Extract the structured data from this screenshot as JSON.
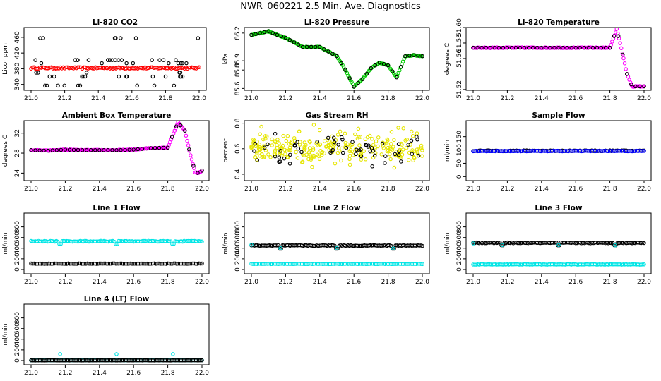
{
  "figure": {
    "title": "NWR_060221  2.5 Min. Ave. Diagnostics"
  },
  "chart_data": [
    {
      "id": "co2",
      "type": "scatter",
      "title": "Li-820 CO2",
      "xlabel": "",
      "ylabel": "Licor ppm",
      "xlim": [
        21.0,
        22.0
      ],
      "ylim": [
        325,
        485
      ],
      "xticks": [
        "21.0",
        "21.2",
        "21.4",
        "21.6",
        "21.8",
        "22.0"
      ],
      "yticks": [
        {
          "v": 340,
          "label": "340"
        },
        {
          "v": 380,
          "label": "380"
        },
        {
          "v": 420,
          "label": "420"
        },
        {
          "v": 460,
          "label": "460"
        }
      ],
      "series": [
        {
          "name": "CO2 (red)",
          "color": "#ff0000",
          "style": "band",
          "value": 382,
          "spread": 2
        },
        {
          "name": "CO2 (black)",
          "color": "#000000",
          "style": "scatter-random",
          "levels": [
            337,
            360,
            370,
            394,
            402,
            458
          ]
        }
      ]
    },
    {
      "id": "pressure",
      "type": "scatter",
      "title": "Li-820 Pressure",
      "xlabel": "",
      "ylabel": "kPa",
      "xlim": [
        21.0,
        22.0
      ],
      "ylim": [
        85.58,
        86.26
      ],
      "xticks": [
        "21.0",
        "21.2",
        "21.4",
        "21.6",
        "21.8",
        "22.0"
      ],
      "yticks": [
        {
          "v": 85.6,
          "label": "85.6"
        },
        {
          "v": 85.8,
          "label": "85.8"
        },
        {
          "v": 85.9,
          "label": "85.9"
        },
        {
          "v": 86.2,
          "label": "86.2"
        }
      ],
      "series": [
        {
          "name": "Pressure (green)",
          "color": "#00cc00",
          "style": "curve",
          "x": [
            21.0,
            21.05,
            21.1,
            21.15,
            21.2,
            21.3,
            21.4,
            21.5,
            21.55,
            21.6,
            21.65,
            21.7,
            21.75,
            21.8,
            21.85,
            21.9,
            21.95,
            22.0
          ],
          "y": [
            86.18,
            86.2,
            86.22,
            86.18,
            86.15,
            86.05,
            86.05,
            85.95,
            85.8,
            85.62,
            85.7,
            85.82,
            85.88,
            85.85,
            85.72,
            85.95,
            85.96,
            85.95
          ]
        },
        {
          "name": "Pressure (black)",
          "color": "#000000",
          "style": "sample-on-curve",
          "of": 0
        }
      ]
    },
    {
      "id": "temp",
      "type": "scatter",
      "title": "Li-820 Temperature",
      "xlabel": "",
      "ylabel": "degrees C",
      "xlim": [
        21.0,
        22.0
      ],
      "ylim": [
        51.519,
        51.6
      ],
      "xticks": [
        "21.0",
        "21.2",
        "21.4",
        "21.6",
        "21.8",
        "22.0"
      ],
      "yticks": [
        {
          "v": 51.52,
          "label": "51.52"
        },
        {
          "v": 51.56,
          "label": "51.56"
        },
        {
          "v": 51.58,
          "label": "51.58"
        },
        {
          "v": 51.6,
          "label": "51.60"
        }
      ],
      "series": [
        {
          "name": "Temperature (magenta)",
          "color": "#ff00ff",
          "style": "curve",
          "x": [
            21.0,
            21.2,
            21.4,
            21.6,
            21.8,
            21.83,
            21.84,
            21.86,
            21.88,
            21.9,
            21.93,
            21.97,
            22.0
          ],
          "y": [
            51.574,
            51.574,
            51.574,
            51.574,
            51.574,
            51.592,
            51.598,
            51.58,
            51.56,
            51.54,
            51.524,
            51.524,
            51.524
          ]
        },
        {
          "name": "Temperature (black)",
          "color": "#000000",
          "style": "sample-on-curve",
          "of": 0
        }
      ]
    },
    {
      "id": "boxtemp",
      "type": "scatter",
      "title": "Ambient Box Temperature",
      "xlabel": "",
      "ylabel": "degrees C",
      "xlim": [
        21.0,
        22.0
      ],
      "ylim": [
        22.5,
        34.5
      ],
      "xticks": [
        "21.0",
        "21.2",
        "21.4",
        "21.6",
        "21.8",
        "22.0"
      ],
      "yticks": [
        {
          "v": 24,
          "label": "24"
        },
        {
          "v": 28,
          "label": "28"
        },
        {
          "v": 32,
          "label": "32"
        }
      ],
      "series": [
        {
          "name": "Box temp (magenta)",
          "color": "#ff00ff",
          "style": "curve",
          "x": [
            21.0,
            21.1,
            21.2,
            21.3,
            21.4,
            21.5,
            21.6,
            21.7,
            21.8,
            21.82,
            21.86,
            21.9,
            21.93,
            21.96,
            21.98,
            22.0
          ],
          "y": [
            28.6,
            28.5,
            28.7,
            28.6,
            28.6,
            28.6,
            28.7,
            29.0,
            29.1,
            30.8,
            34.2,
            32.5,
            28.0,
            24.2,
            24.0,
            24.5
          ]
        },
        {
          "name": "Box temp (black)",
          "color": "#000000",
          "style": "sample-on-curve",
          "of": 0
        }
      ]
    },
    {
      "id": "rh",
      "type": "scatter",
      "title": "Gas Stream RH",
      "xlabel": "",
      "ylabel": "percent",
      "xlim": [
        21.0,
        22.0
      ],
      "ylim": [
        0.35,
        0.82
      ],
      "xticks": [
        "21.0",
        "21.2",
        "21.4",
        "21.6",
        "21.8",
        "22.0"
      ],
      "yticks": [
        {
          "v": 0.4,
          "label": "0.4"
        },
        {
          "v": 0.6,
          "label": "0.6"
        },
        {
          "v": 0.8,
          "label": "0.8"
        }
      ],
      "series": [
        {
          "name": "RH (yellow)",
          "color": "#e6e600",
          "style": "noise",
          "center": 0.6,
          "spread": 0.11,
          "count": 260
        },
        {
          "name": "RH (black)",
          "color": "#000000",
          "style": "noise",
          "center": 0.59,
          "spread": 0.09,
          "count": 60
        }
      ]
    },
    {
      "id": "sampleflow",
      "type": "scatter",
      "title": "Sample Flow",
      "xlabel": "",
      "ylabel": "ml/min",
      "xlim": [
        21.0,
        22.0
      ],
      "ylim": [
        -15,
        210
      ],
      "xticks": [
        "21.0",
        "21.2",
        "21.4",
        "21.6",
        "21.8",
        "22.0"
      ],
      "yticks": [
        {
          "v": 0,
          "label": "0"
        },
        {
          "v": 50,
          "label": "50"
        },
        {
          "v": 100,
          "label": "100"
        },
        {
          "v": 150,
          "label": "150"
        }
      ],
      "series": [
        {
          "name": "Sample flow (black)",
          "color": "#000000",
          "style": "band",
          "value": 97,
          "spread": 1.5
        },
        {
          "name": "Sample flow (blue)",
          "color": "#0000ff",
          "style": "band",
          "value": 96,
          "spread": 1.2
        }
      ]
    },
    {
      "id": "line1",
      "type": "scatter",
      "title": "Line 1 Flow",
      "xlabel": "",
      "ylabel": "ml/min",
      "xlim": [
        21.0,
        22.0
      ],
      "ylim": [
        -80,
        1060
      ],
      "xticks": [
        "21.0",
        "21.2",
        "21.4",
        "21.6",
        "21.8",
        "22.0"
      ],
      "yticks": [
        {
          "v": 0,
          "label": "0"
        },
        {
          "v": 200,
          "label": "200"
        },
        {
          "v": 400,
          "label": "400"
        },
        {
          "v": 600,
          "label": "600"
        },
        {
          "v": 800,
          "label": "800"
        }
      ],
      "series": [
        {
          "name": "Line 1 (cyan)",
          "color": "#00e5e5",
          "style": "band",
          "value": 530,
          "spread": 8,
          "dips": [
            21.17,
            21.5,
            21.83
          ],
          "dipValue": 480
        },
        {
          "name": "Line 1 (black)",
          "color": "#000000",
          "style": "band",
          "value": 110,
          "spread": 4
        }
      ]
    },
    {
      "id": "line2",
      "type": "scatter",
      "title": "Line 2 Flow",
      "xlabel": "",
      "ylabel": "ml/min",
      "xlim": [
        21.0,
        22.0
      ],
      "ylim": [
        -80,
        1060
      ],
      "xticks": [
        "21.0",
        "21.2",
        "21.4",
        "21.6",
        "21.8",
        "22.0"
      ],
      "yticks": [
        {
          "v": 0,
          "label": "0"
        },
        {
          "v": 200,
          "label": "200"
        },
        {
          "v": 400,
          "label": "400"
        },
        {
          "v": 600,
          "label": "600"
        },
        {
          "v": 800,
          "label": "800"
        }
      ],
      "series": [
        {
          "name": "Line 2 (cyan band)",
          "color": "#00e5e5",
          "style": "band",
          "value": 105,
          "spread": 4
        },
        {
          "name": "Line 2 (black)",
          "color": "#000000",
          "style": "band",
          "value": 450,
          "spread": 8,
          "dips": [
            21.17,
            21.5,
            21.83
          ],
          "dipValue": 390
        },
        {
          "name": "Line 2 (cyan dips)",
          "color": "#00e5e5",
          "style": "points",
          "x": [
            21.0,
            21.17,
            21.5,
            21.83
          ],
          "y": [
            465,
            400,
            400,
            395
          ]
        }
      ]
    },
    {
      "id": "line3",
      "type": "scatter",
      "title": "Line 3 Flow",
      "xlabel": "",
      "ylabel": "ml/min",
      "xlim": [
        21.0,
        22.0
      ],
      "ylim": [
        -80,
        1060
      ],
      "xticks": [
        "21.0",
        "21.2",
        "21.4",
        "21.6",
        "21.8",
        "22.0"
      ],
      "yticks": [
        {
          "v": 0,
          "label": "0"
        },
        {
          "v": 200,
          "label": "200"
        },
        {
          "v": 400,
          "label": "400"
        },
        {
          "v": 600,
          "label": "600"
        },
        {
          "v": 800,
          "label": "800"
        }
      ],
      "series": [
        {
          "name": "Line 3 (cyan band)",
          "color": "#00e5e5",
          "style": "band",
          "value": 95,
          "spread": 4
        },
        {
          "name": "Line 3 (black)",
          "color": "#000000",
          "style": "band",
          "value": 500,
          "spread": 8,
          "dips": [
            21.17,
            21.5,
            21.83
          ],
          "dipValue": 455
        },
        {
          "name": "Line 3 (cyan dips)",
          "color": "#00e5e5",
          "style": "points",
          "x": [
            21.0,
            21.17,
            21.5,
            21.83
          ],
          "y": [
            490,
            460,
            460,
            455
          ]
        }
      ]
    },
    {
      "id": "line4",
      "type": "scatter",
      "title": "Line 4 (LT) Flow",
      "xlabel": "",
      "ylabel": "ml/min",
      "xlim": [
        21.0,
        22.0
      ],
      "ylim": [
        -80,
        1060
      ],
      "xticks": [
        "21.0",
        "21.2",
        "21.4",
        "21.6",
        "21.8",
        "22.0"
      ],
      "yticks": [
        {
          "v": 0,
          "label": "0"
        },
        {
          "v": 200,
          "label": "200"
        },
        {
          "v": 400,
          "label": "400"
        },
        {
          "v": 600,
          "label": "600"
        },
        {
          "v": 800,
          "label": "800"
        }
      ],
      "series": [
        {
          "name": "Line 4 (cyan)",
          "color": "#00e5e5",
          "style": "band",
          "value": 5,
          "spread": 2
        },
        {
          "name": "Line 4 (black)",
          "color": "#000000",
          "style": "band",
          "value": 3,
          "spread": 2
        },
        {
          "name": "Line 4 (cyan spikes)",
          "color": "#00e5e5",
          "style": "points",
          "x": [
            21.17,
            21.5,
            21.83
          ],
          "y": [
            120,
            120,
            120
          ]
        }
      ]
    }
  ]
}
